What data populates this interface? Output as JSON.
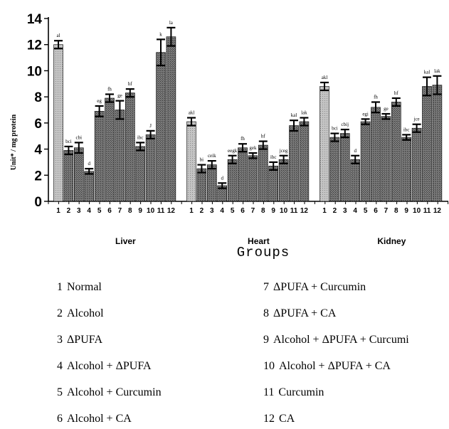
{
  "chart_data": {
    "type": "bar",
    "ylabel": "Unit* / mg protein",
    "xlabel": "Groups",
    "ylim": [
      0,
      14
    ],
    "yticks": [
      "0",
      "2",
      "4",
      "6",
      "8",
      "10",
      "12",
      "14"
    ],
    "categories": [
      "1",
      "2",
      "3",
      "4",
      "5",
      "6",
      "7",
      "8",
      "9",
      "10",
      "11",
      "12"
    ],
    "panels": [
      {
        "name": "Liver",
        "values": [
          12.0,
          3.9,
          4.1,
          2.3,
          6.9,
          7.9,
          7.0,
          8.3,
          4.2,
          5.1,
          11.4,
          12.6
        ],
        "errors": [
          0.3,
          0.3,
          0.4,
          0.2,
          0.4,
          0.3,
          0.7,
          0.3,
          0.3,
          0.3,
          1.0,
          0.7
        ],
        "labels": [
          "al",
          "bci",
          "cbi",
          "d",
          "eg",
          "fh",
          "ge",
          "hf",
          "ibc",
          "J",
          "k",
          "la"
        ]
      },
      {
        "name": "Heart",
        "values": [
          6.1,
          2.5,
          2.8,
          1.2,
          3.2,
          4.1,
          3.5,
          4.3,
          2.7,
          3.2,
          5.8,
          6.1
        ],
        "errors": [
          0.3,
          0.3,
          0.3,
          0.2,
          0.3,
          0.3,
          0.2,
          0.3,
          0.3,
          0.3,
          0.4,
          0.3
        ],
        "labels": [
          "akl",
          "bi",
          "ceik",
          "d",
          "eegk",
          "fh",
          "gek",
          "hf",
          "ibc",
          "jceg",
          "kal",
          "lak"
        ]
      },
      {
        "name": "Kidney",
        "values": [
          8.8,
          4.9,
          5.2,
          3.2,
          6.1,
          7.2,
          6.5,
          7.6,
          4.9,
          5.6,
          8.8,
          8.9
        ],
        "errors": [
          0.3,
          0.3,
          0.3,
          0.3,
          0.2,
          0.4,
          0.2,
          0.3,
          0.2,
          0.3,
          0.7,
          0.7
        ],
        "labels": [
          "akl",
          "bci",
          "cbij",
          "d",
          "egi",
          "fh",
          "ge",
          "hf",
          "ibc",
          "jce",
          "kal",
          "lak"
        ]
      }
    ],
    "legend": [
      {
        "num": "1",
        "label": "Normal"
      },
      {
        "num": "2",
        "label": "Alcohol"
      },
      {
        "num": "3",
        "label": "ΔPUFA"
      },
      {
        "num": "4",
        "label": "Alcohol + ΔPUFA"
      },
      {
        "num": "5",
        "label": "Alcohol + Curcumin"
      },
      {
        "num": "6",
        "label": "Alcohol + CA"
      },
      {
        "num": "7",
        "label": "ΔPUFA + Curcumin"
      },
      {
        "num": "8",
        "label": "ΔPUFA + CA"
      },
      {
        "num": "9",
        "label": "Alcohol + ΔPUFA + Curcumi"
      },
      {
        "num": "10",
        "label": "Alcohol + ΔPUFA + CA"
      },
      {
        "num": "11",
        "label": "Curcumin"
      },
      {
        "num": "12",
        "label": "CA"
      }
    ],
    "colors": {
      "light_bar": "#b8b8b8",
      "dark_bar": "#707070",
      "outline": "#000000"
    }
  }
}
